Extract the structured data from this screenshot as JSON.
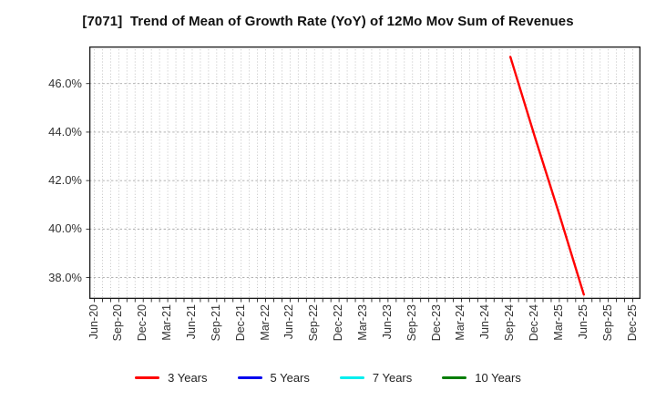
{
  "title": "[7071]  Trend of Mean of Growth Rate (YoY) of 12Mo Mov Sum of Revenues",
  "chart_data": {
    "type": "line",
    "title": "[7071]  Trend of Mean of Growth Rate (YoY) of 12Mo Mov Sum of Revenues",
    "x_tick_labels": [
      "Jun-20",
      "Sep-20",
      "Dec-20",
      "Mar-21",
      "Jun-21",
      "Sep-21",
      "Dec-21",
      "Mar-22",
      "Jun-22",
      "Sep-22",
      "Dec-22",
      "Mar-23",
      "Jun-23",
      "Sep-23",
      "Dec-23",
      "Mar-24",
      "Jun-24",
      "Sep-24",
      "Dec-24",
      "Mar-25",
      "Jun-25",
      "Sep-25",
      "Dec-25"
    ],
    "x_months_total": 67,
    "y_tick_labels": [
      "38.0%",
      "40.0%",
      "42.0%",
      "44.0%",
      "46.0%"
    ],
    "y_tick_values": [
      38,
      40,
      42,
      44,
      46
    ],
    "ylim": [
      37.12,
      47.53
    ],
    "grid": {
      "vertical": "monthly dotted",
      "horizontal": "dashed at 2% steps"
    },
    "legend_position": "bottom",
    "series": [
      {
        "name": "3 Years",
        "color": "#ff0000",
        "points": [
          {
            "x": "Sep-24",
            "y": 47.1
          },
          {
            "x": "Dec-24",
            "y": 43.8
          },
          {
            "x": "Mar-25",
            "y": 40.6
          },
          {
            "x": "Jun-25",
            "y": 37.3
          }
        ]
      },
      {
        "name": "5 Years",
        "color": "#0000ee",
        "points": []
      },
      {
        "name": "7 Years",
        "color": "#00eeee",
        "points": []
      },
      {
        "name": "10 Years",
        "color": "#007d00",
        "points": []
      }
    ]
  },
  "legend": [
    {
      "label": "3 Years",
      "color": "#ff0000"
    },
    {
      "label": "5 Years",
      "color": "#0000ee"
    },
    {
      "label": "7 Years",
      "color": "#00eeee"
    },
    {
      "label": "10 Years",
      "color": "#007d00"
    }
  ]
}
